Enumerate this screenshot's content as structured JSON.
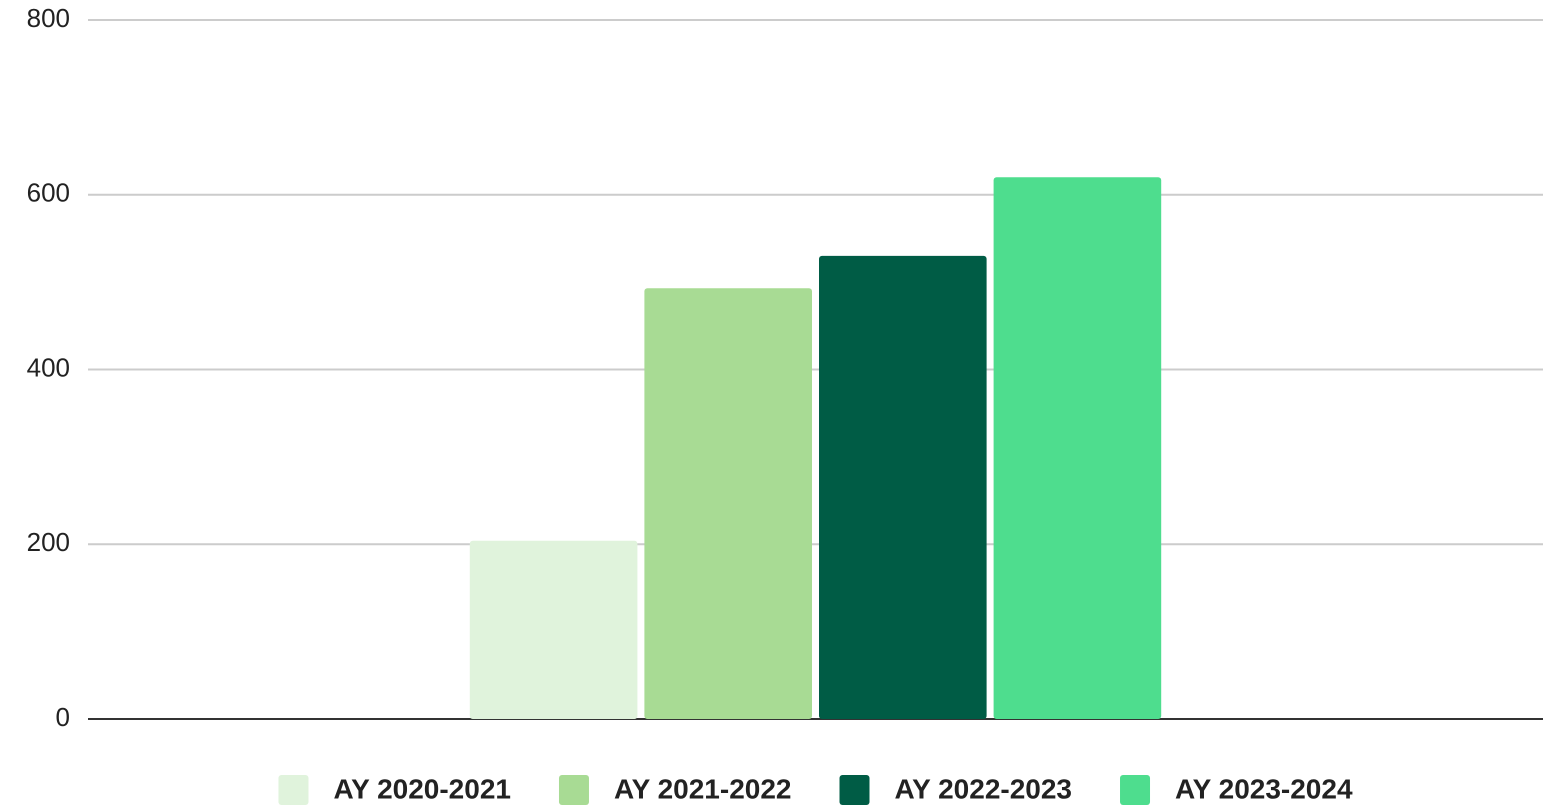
{
  "chart_data": {
    "type": "bar",
    "categories": [
      null
    ],
    "series": [
      {
        "name": "AY 2020-2021",
        "color": "#e0f3dc",
        "values": [
          204
        ]
      },
      {
        "name": "AY 2021-2022",
        "color": "#a8db94",
        "values": [
          493
        ]
      },
      {
        "name": "AY 2022-2023",
        "color": "#005c45",
        "values": [
          530
        ]
      },
      {
        "name": "AY 2023-2024",
        "color": "#4edd8e",
        "values": [
          620
        ]
      }
    ],
    "ylim": [
      0,
      800
    ],
    "yticks": [
      0,
      200,
      400,
      600,
      800
    ],
    "grid": true,
    "legend": "bottom"
  }
}
